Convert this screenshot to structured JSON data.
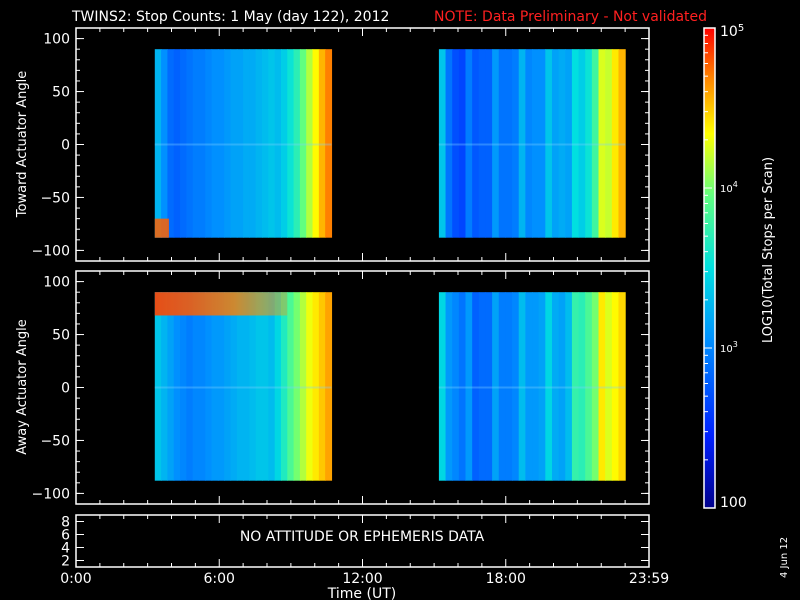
{
  "chart_data": {
    "type": "heatmap",
    "title": "TWINS2: Stop Counts:  1 May (day 122), 2012",
    "note": "NOTE: Data Preliminary - Not validated",
    "xlabel": "Time (UT)",
    "x_ticks": [
      "0:00",
      "6:00",
      "12:00",
      "18:00",
      "23:59"
    ],
    "x_range_hours": [
      0,
      24
    ],
    "panels": [
      {
        "name": "toward",
        "ylabel": "Toward Actuator Angle",
        "y_ticks": [
          "100",
          "50",
          "0",
          "−50",
          "−100"
        ],
        "y_range": [
          -110,
          110
        ],
        "data_blocks": [
          {
            "start_hour": 3.3,
            "end_hour": 10.7,
            "angle_range": [
              -88,
              90
            ]
          },
          {
            "start_hour": 15.2,
            "end_hour": 23.0,
            "angle_range": [
              -88,
              90
            ]
          }
        ],
        "columns_log10_counts": [
          3.25,
          3.05,
          2.85,
          2.8,
          2.85,
          2.9,
          2.95,
          2.95,
          3.0,
          3.05,
          3.05,
          3.1,
          3.15,
          3.15,
          3.2,
          3.2,
          3.25,
          3.3,
          3.35,
          3.3,
          3.4,
          3.55,
          3.7,
          3.95,
          4.15,
          4.35,
          4.55,
          4.7
        ]
      },
      {
        "name": "away",
        "ylabel": "Away Actuator Angle",
        "y_ticks": [
          "100",
          "50",
          "0",
          "−50",
          "−100"
        ],
        "y_range": [
          -110,
          110
        ],
        "data_blocks": [
          {
            "start_hour": 3.3,
            "end_hour": 10.7,
            "angle_range": [
              -88,
              90
            ]
          },
          {
            "start_hour": 15.2,
            "end_hour": 23.0,
            "angle_range": [
              -88,
              90
            ]
          }
        ],
        "columns_log10_counts": [
          3.35,
          3.25,
          3.15,
          3.05,
          3.0,
          2.95,
          3.0,
          3.0,
          3.05,
          3.1,
          3.1,
          3.15,
          3.2,
          3.25,
          3.25,
          3.3,
          3.35,
          3.35,
          3.3,
          3.45,
          3.65,
          3.85,
          4.0,
          4.15,
          4.3,
          4.4,
          4.5,
          4.6
        ]
      }
    ],
    "attitude_panel": {
      "message": "NO ATTITUDE OR EPHEMERIS DATA",
      "y_ticks": [
        "8",
        "6",
        "4",
        "2"
      ]
    },
    "colorbar": {
      "label": "LOG10(Total Stops per Scan)",
      "range_log10": [
        2,
        5
      ],
      "tick_labels": [
        "10",
        "10",
        "10",
        "100"
      ],
      "tick_exponents": [
        "5",
        "4",
        "3",
        ""
      ],
      "tick_values_log10": [
        5,
        4,
        3,
        2
      ]
    },
    "date_stamp": "4 Jun 12"
  }
}
